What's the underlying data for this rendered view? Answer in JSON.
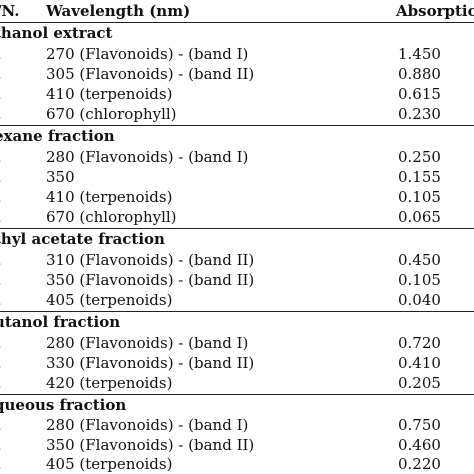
{
  "header": {
    "sn": "/N.",
    "wavelength": "Wavelength (nm)",
    "absorption": "Absorptio"
  },
  "sections": [
    {
      "title": "thanol extract",
      "rows": [
        {
          "sn": ".",
          "wavelength": "270 (Flavonoids) - (band I)",
          "absorption": "1.450"
        },
        {
          "sn": ".",
          "wavelength": "305 (Flavonoids) - (band II)",
          "absorption": "0.880"
        },
        {
          "sn": ".",
          "wavelength": "410 (terpenoids)",
          "absorption": "0.615"
        },
        {
          "sn": ".",
          "wavelength": "670 (chlorophyll)",
          "absorption": "0.230"
        }
      ]
    },
    {
      "title": "exane fraction",
      "rows": [
        {
          "sn": ".",
          "wavelength": "280 (Flavonoids) - (band I)",
          "absorption": "0.250"
        },
        {
          "sn": ".",
          "wavelength": "350",
          "absorption": "0.155"
        },
        {
          "sn": ".",
          "wavelength": "410 (terpenoids)",
          "absorption": "0.105"
        },
        {
          "sn": ".",
          "wavelength": "670 (chlorophyll)",
          "absorption": "0.065"
        }
      ]
    },
    {
      "title": "thyl acetate fraction",
      "rows": [
        {
          "sn": ".",
          "wavelength": "310 (Flavonoids) - (band II)",
          "absorption": "0.450"
        },
        {
          "sn": ".",
          "wavelength": "350 (Flavonoids) - (band II)",
          "absorption": "0.105"
        },
        {
          "sn": ".",
          "wavelength": "405 (terpenoids)",
          "absorption": "0.040"
        }
      ]
    },
    {
      "title": "utanol fraction",
      "rows": [
        {
          "sn": ".",
          "wavelength": "280 (Flavonoids) - (band I)",
          "absorption": "0.720"
        },
        {
          "sn": ".",
          "wavelength": "330 (Flavonoids) - (band II)",
          "absorption": "0.410"
        },
        {
          "sn": ".",
          "wavelength": "420 (terpenoids)",
          "absorption": "0.205"
        }
      ]
    },
    {
      "title": "queous fraction",
      "rows": [
        {
          "sn": ".",
          "wavelength": "280 (Flavonoids) - (band I)",
          "absorption": "0.750"
        },
        {
          "sn": ".",
          "wavelength": "350 (Flavonoids) - (band II)",
          "absorption": "0.460"
        },
        {
          "sn": ".",
          "wavelength": "405 (terpenoids)",
          "absorption": "0.220"
        }
      ]
    }
  ]
}
